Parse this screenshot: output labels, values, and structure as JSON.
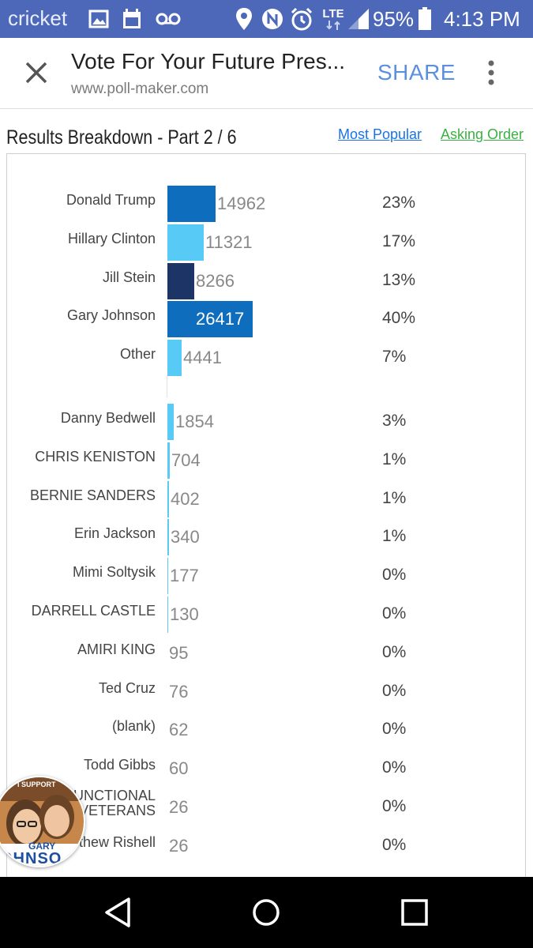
{
  "status_bar": {
    "carrier": "cricket",
    "network": "LTE",
    "battery": "95%",
    "time": "4:13 PM",
    "icons": [
      "image-icon",
      "calendar-icon",
      "voicemail-icon",
      "location-icon",
      "nfc-icon",
      "alarm-icon",
      "lte-icon",
      "signal-icon",
      "battery-icon"
    ]
  },
  "app_bar": {
    "title": "Vote For Your Future Pres...",
    "url": "www.poll-maker.com",
    "share_label": "SHARE"
  },
  "results": {
    "heading": "Results Breakdown - Part 2 / 6",
    "link_most_popular": "Most Popular",
    "link_asking_order": "Asking Order",
    "rows": [
      {
        "name": "Donald Trump",
        "count": "14962",
        "percent": "23%",
        "color": "#0f6dbd"
      },
      {
        "name": "Hillary Clinton",
        "count": "11321",
        "percent": "17%",
        "color": "#57cbf5"
      },
      {
        "name": "Jill Stein",
        "count": "8266",
        "percent": "13%",
        "color": "#1c3566"
      },
      {
        "name": "Gary Johnson",
        "count": "26417",
        "percent": "40%",
        "color": "#0f6dbd"
      },
      {
        "name": "Other",
        "count": "4441",
        "percent": "7%",
        "color": "#57cbf5"
      },
      {
        "name": "Danny Bedwell",
        "count": "1854",
        "percent": "3%",
        "color": "#57cbf5"
      },
      {
        "name": "CHRIS KENISTON",
        "count": "704",
        "percent": "1%",
        "color": "#57cbf5"
      },
      {
        "name": "BERNIE SANDERS",
        "count": "402",
        "percent": "1%",
        "color": "#57cbf5"
      },
      {
        "name": "Erin Jackson",
        "count": "340",
        "percent": "1%",
        "color": "#57cbf5"
      },
      {
        "name": "Mimi Soltysik",
        "count": "177",
        "percent": "0%",
        "color": "#57cbf5"
      },
      {
        "name": "DARRELL CASTLE",
        "count": "130",
        "percent": "0%",
        "color": "#57cbf5"
      },
      {
        "name": "AMIRI KING",
        "count": "95",
        "percent": "0%",
        "color": "#57cbf5"
      },
      {
        "name": "Ted Cruz",
        "count": "76",
        "percent": "0%",
        "color": "#57cbf5"
      },
      {
        "name": "(blank)",
        "count": "62",
        "percent": "0%",
        "color": "#57cbf5"
      },
      {
        "name": "Todd Gibbs",
        "count": "60",
        "percent": "0%",
        "color": "#57cbf5"
      },
      {
        "name": "UNCTIONAL\nVETERANS",
        "count": "26",
        "percent": "0%",
        "color": "#57cbf5"
      },
      {
        "name": "thew Rishell",
        "count": "26",
        "percent": "0%",
        "color": "#57cbf5"
      }
    ]
  },
  "chat_head": {
    "badge_top": "I SUPPORT",
    "badge_line1": "GARY",
    "badge_line2": "OHNSO"
  },
  "nav_bar": {
    "icons": [
      "back-icon",
      "home-icon",
      "recents-icon"
    ]
  }
}
